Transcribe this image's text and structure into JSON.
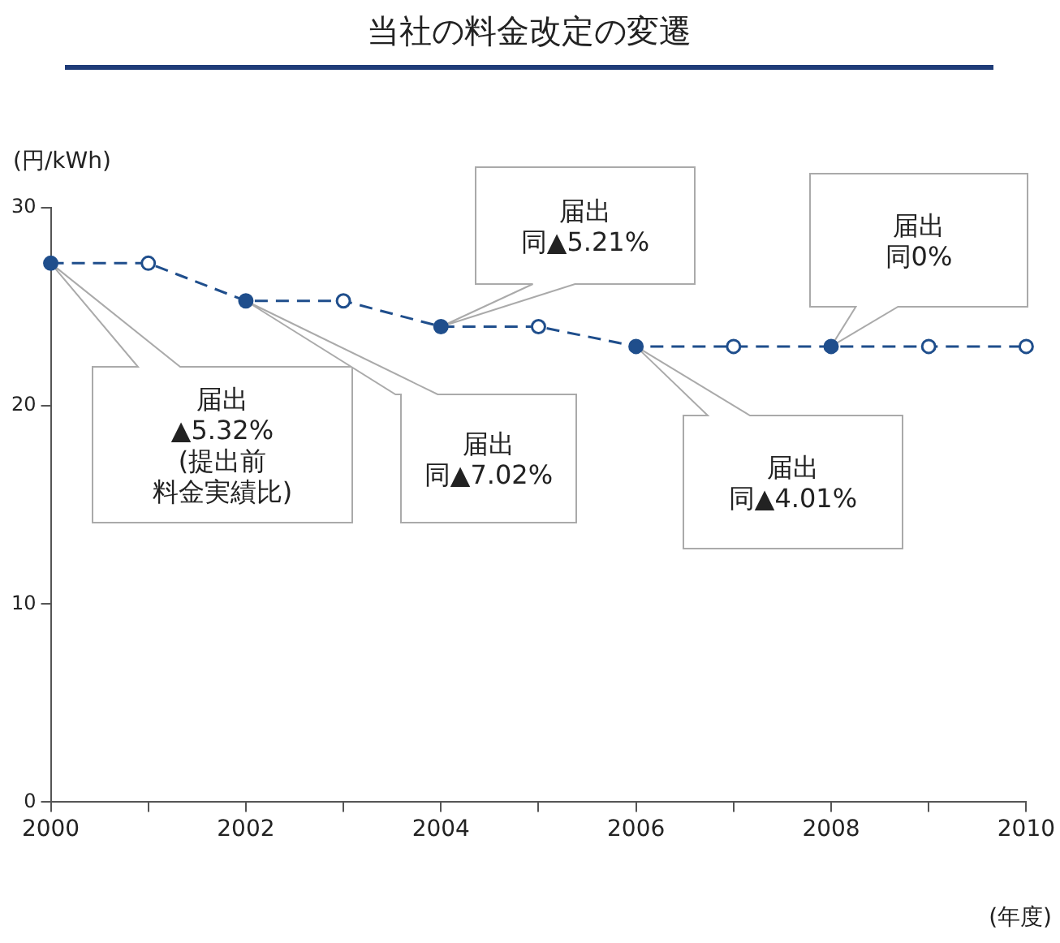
{
  "chart_data": {
    "type": "line",
    "title": "当社の料金改定の変遷",
    "ylabel": "(円/kWh)",
    "xlabel": "(年度)",
    "x": [
      2000,
      2001,
      2002,
      2003,
      2004,
      2005,
      2006,
      2007,
      2008,
      2009,
      2010
    ],
    "series": [
      {
        "color": "#1f4e8c",
        "values": [
          27.2,
          27.2,
          25.3,
          25.3,
          24.0,
          24.0,
          23.0,
          23.0,
          23.0,
          23.0,
          23.0
        ],
        "colors": [
          "#1f4e8c",
          "#ffffff",
          "#1f4e8c",
          "#ffffff",
          "#1f4e8c",
          "#ffffff",
          "#1f4e8c",
          "#ffffff",
          "#1f4e8c",
          "#ffffff",
          "#ffffff"
        ]
      }
    ],
    "marker": "circle",
    "line_style": "dashed",
    "grid": false,
    "legend": false,
    "xlim": [
      2000,
      2010
    ],
    "xticks": [
      2000,
      {
        "value": 2001,
        "label": null
      },
      2002,
      {
        "value": 2003,
        "label": null
      },
      2004,
      {
        "value": 2005,
        "label": null
      },
      2006,
      {
        "value": 2007,
        "label": null
      },
      2008,
      {
        "value": 2009,
        "label": null
      },
      2010
    ],
    "ylim": [
      0,
      30
    ],
    "yticks": [
      0,
      10,
      20,
      30
    ],
    "annotations": [
      "届出▲5.32%(提出前料金実績比)",
      "届出同▲7.02%",
      "届出同▲5.21%",
      "届出同▲4.01%",
      "届出同0%"
    ]
  }
}
